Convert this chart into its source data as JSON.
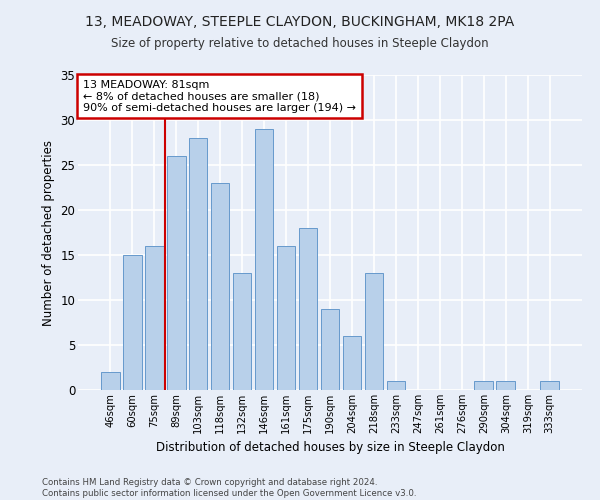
{
  "title": "13, MEADOWAY, STEEPLE CLAYDON, BUCKINGHAM, MK18 2PA",
  "subtitle": "Size of property relative to detached houses in Steeple Claydon",
  "xlabel": "Distribution of detached houses by size in Steeple Claydon",
  "ylabel": "Number of detached properties",
  "categories": [
    "46sqm",
    "60sqm",
    "75sqm",
    "89sqm",
    "103sqm",
    "118sqm",
    "132sqm",
    "146sqm",
    "161sqm",
    "175sqm",
    "190sqm",
    "204sqm",
    "218sqm",
    "233sqm",
    "247sqm",
    "261sqm",
    "276sqm",
    "290sqm",
    "304sqm",
    "319sqm",
    "333sqm"
  ],
  "values": [
    2,
    15,
    16,
    26,
    28,
    23,
    13,
    29,
    16,
    18,
    9,
    6,
    13,
    1,
    0,
    0,
    0,
    1,
    1,
    0,
    1
  ],
  "bar_color": "#b8d0ea",
  "bar_edge_color": "#6699cc",
  "background_color": "#e8eef8",
  "grid_color": "#ffffff",
  "ylim": [
    0,
    35
  ],
  "yticks": [
    0,
    5,
    10,
    15,
    20,
    25,
    30,
    35
  ],
  "annotation_text_line1": "13 MEADOWAY: 81sqm",
  "annotation_text_line2": "← 8% of detached houses are smaller (18)",
  "annotation_text_line3": "90% of semi-detached houses are larger (194) →",
  "annotation_box_color": "#ffffff",
  "annotation_border_color": "#cc0000",
  "vline_color": "#cc0000",
  "vline_x_index": 2.5,
  "footer_line1": "Contains HM Land Registry data © Crown copyright and database right 2024.",
  "footer_line2": "Contains public sector information licensed under the Open Government Licence v3.0."
}
